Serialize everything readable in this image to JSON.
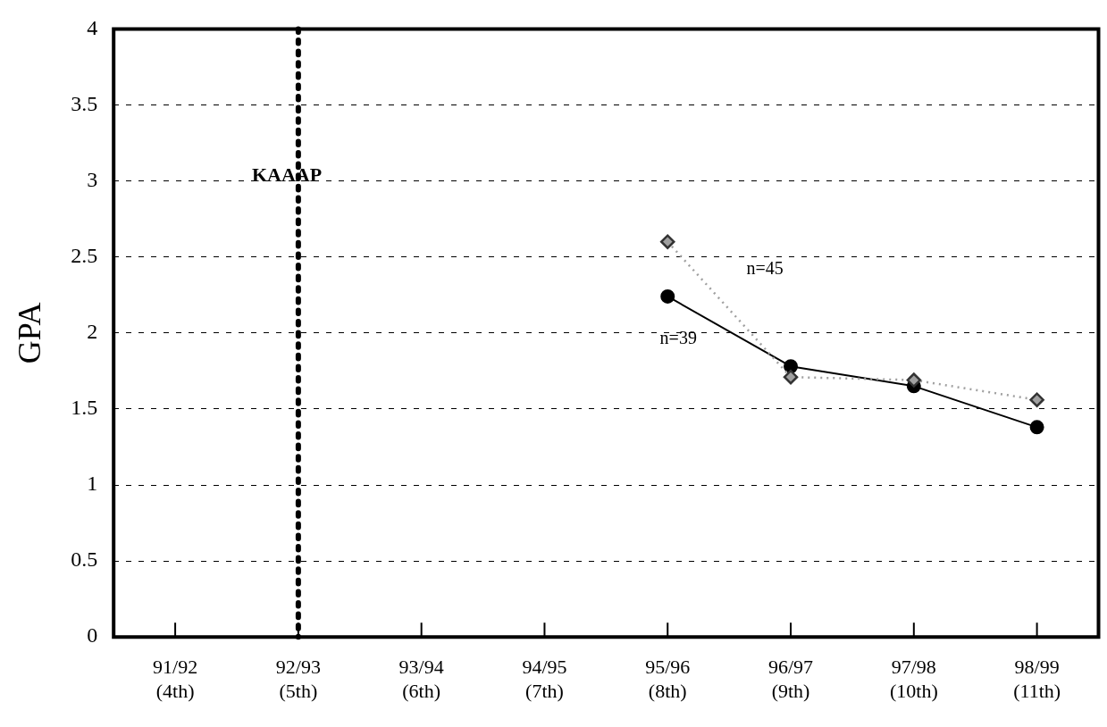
{
  "chart_data": {
    "type": "line",
    "ylabel": "GPA",
    "categories": [
      "91/92 (4th)",
      "92/93 (5th)",
      "93/94 (6th)",
      "94/95 (7th)",
      "95/96 (8th)",
      "96/97 (9th)",
      "97/98 (10th)",
      "98/99 (11th)"
    ],
    "ylim": [
      0,
      4
    ],
    "yticks": [
      0,
      0.5,
      1,
      1.5,
      2,
      2.5,
      3,
      3.5,
      4
    ],
    "grid": "y",
    "legend": false,
    "series": [
      {
        "values": [
          null,
          null,
          null,
          null,
          2.6,
          1.71,
          1.69,
          1.56
        ],
        "color": "#a0a0a0",
        "marker": "diamond",
        "line_style": "dotted"
      },
      {
        "values": [
          null,
          null,
          null,
          null,
          2.24,
          1.78,
          1.65,
          1.38
        ],
        "color": "#000000",
        "marker": "circle",
        "line_style": "solid"
      }
    ],
    "ref_lines": [
      {
        "axis": "x",
        "value": "92/93 (5th)",
        "label": "KAAAP",
        "color": "#000000",
        "line_style": "dotted"
      }
    ],
    "annotations": [
      "n=45",
      "n=39"
    ]
  }
}
